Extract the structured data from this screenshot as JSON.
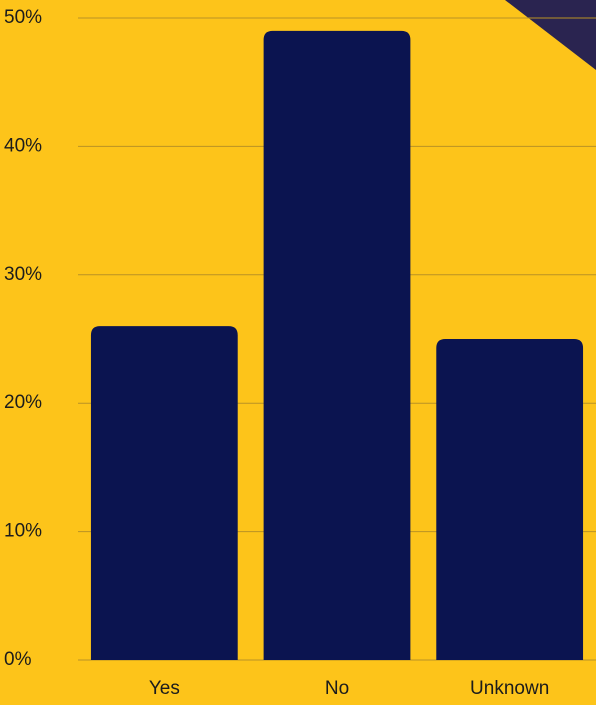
{
  "chart_data": {
    "type": "bar",
    "categories": [
      "Yes",
      "No",
      "Unknown"
    ],
    "values": [
      26,
      49,
      25
    ],
    "color": "#0b1450",
    "ylim": [
      0,
      50
    ],
    "yticks": [
      {
        "value": 0,
        "label": "0%"
      },
      {
        "value": 10,
        "label": "10%"
      },
      {
        "value": 20,
        "label": "20%"
      },
      {
        "value": 30,
        "label": "30%"
      },
      {
        "value": 40,
        "label": "40%"
      },
      {
        "value": 50,
        "label": "50%"
      }
    ],
    "grid": true
  }
}
